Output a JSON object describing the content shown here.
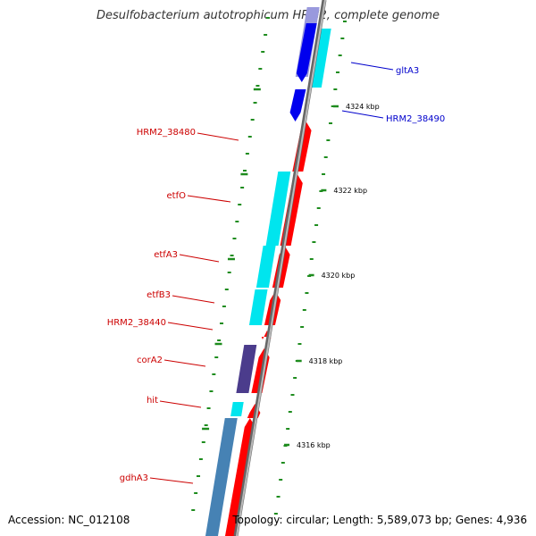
{
  "title": "Desulfobacterium autotrophicum HRM2, complete genome",
  "footer": {
    "accession": "Accession: NC_012108",
    "topology": "Topology: circular; Length: 5,589,073 bp; Genes: 4,936"
  },
  "colors": {
    "backbone": "#8a8a8a",
    "tick": "#1e8c1e",
    "label_reverse": "#cc0000",
    "label_forward": "#0000cc",
    "cds_reverse": "#ff0000",
    "cds_forward": "#0000ee",
    "cog_energy": "#00e5ee",
    "cog_transport": "#4b3c8c",
    "cog_amino": "#4682b4",
    "cog_unknown": "#9999dd"
  },
  "ticks": [
    "4324 kbp",
    "4322 kbp",
    "4320 kbp",
    "4318 kbp",
    "4316 kbp"
  ],
  "gene_labels": [
    {
      "text": "gltA3",
      "strand": "forward"
    },
    {
      "text": "HRM2_38490",
      "strand": "forward"
    },
    {
      "text": "HRM2_38480",
      "strand": "reverse"
    },
    {
      "text": "etfO",
      "strand": "reverse"
    },
    {
      "text": "etfA3",
      "strand": "reverse"
    },
    {
      "text": "etfB3",
      "strand": "reverse"
    },
    {
      "text": "HRM2_38440",
      "strand": "reverse"
    },
    {
      "text": "corA2",
      "strand": "reverse"
    },
    {
      "text": "hit",
      "strand": "reverse"
    },
    {
      "text": "gdhA3",
      "strand": "reverse"
    }
  ]
}
